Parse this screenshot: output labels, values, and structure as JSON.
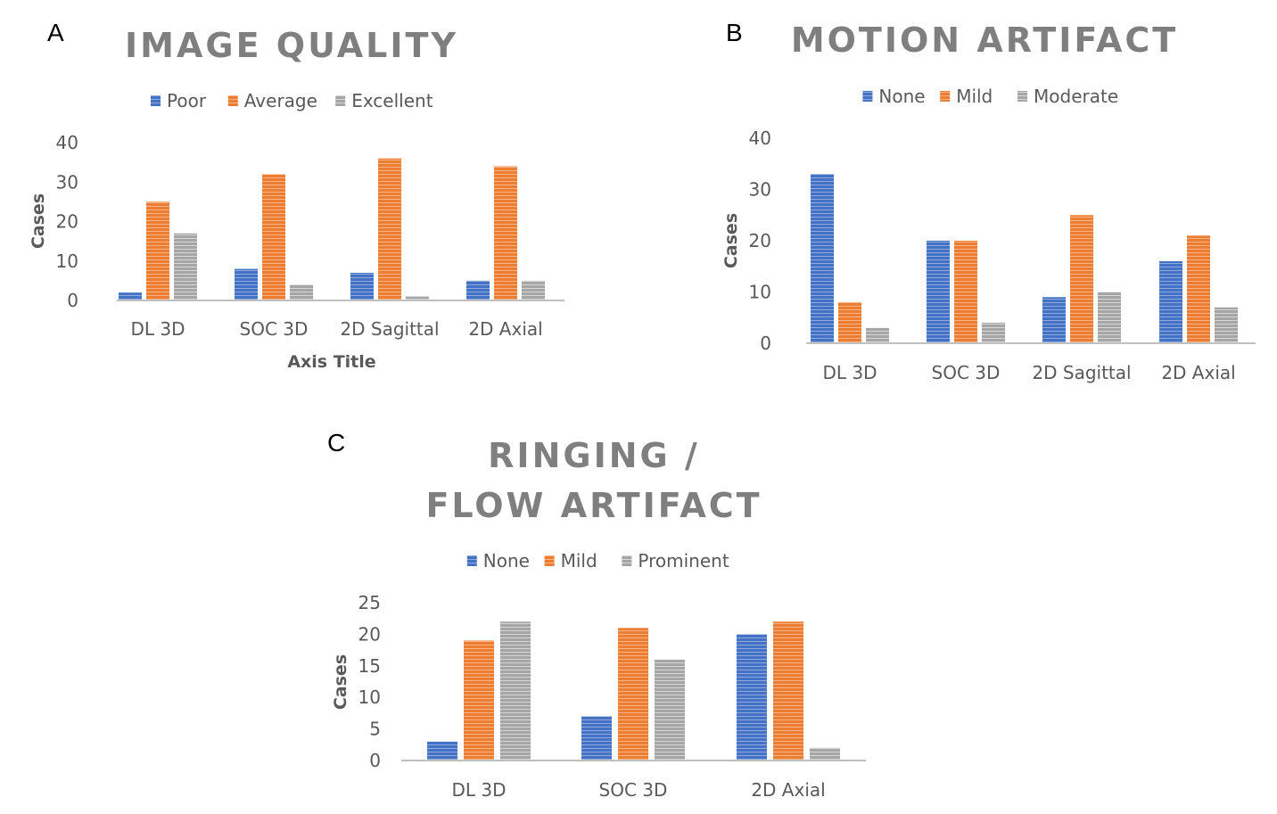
{
  "colors": {
    "blue": "#4472c4",
    "orange": "#ed7d31",
    "gray": "#a5a5a5"
  },
  "chart_data": [
    {
      "panel": "A",
      "type": "bar",
      "title": "IMAGE QUALITY",
      "categories": [
        "DL 3D",
        "SOC 3D",
        "2D Sagittal",
        "2D Axial"
      ],
      "series": [
        {
          "name": "Poor",
          "values": [
            2,
            8,
            7,
            5
          ]
        },
        {
          "name": "Average",
          "values": [
            25,
            32,
            36,
            34
          ]
        },
        {
          "name": "Excellent",
          "values": [
            17,
            4,
            1,
            5
          ]
        }
      ],
      "xlabel": "Axis Title",
      "ylabel": "Cases",
      "ylim": [
        0,
        40
      ],
      "yticks": [
        "0",
        "10",
        "20",
        "30",
        "40"
      ],
      "grid": false,
      "legend": "top"
    },
    {
      "panel": "B",
      "type": "bar",
      "title": "MOTION ARTIFACT",
      "categories": [
        "DL 3D",
        "SOC 3D",
        "2D Sagittal",
        "2D Axial"
      ],
      "series": [
        {
          "name": "None",
          "values": [
            33,
            20,
            9,
            16
          ]
        },
        {
          "name": "Mild",
          "values": [
            8,
            20,
            25,
            21
          ]
        },
        {
          "name": "Moderate",
          "values": [
            3,
            4,
            10,
            7
          ]
        }
      ],
      "xlabel": "",
      "ylabel": "Cases",
      "ylim": [
        0,
        40
      ],
      "yticks": [
        "0",
        "10",
        "20",
        "30",
        "40"
      ],
      "grid": false,
      "legend": "top"
    },
    {
      "panel": "C",
      "type": "bar",
      "title": "RINGING / FLOW ARTIFACT",
      "categories": [
        "DL 3D",
        "SOC 3D",
        "2D Axial"
      ],
      "series": [
        {
          "name": "None",
          "values": [
            3,
            7,
            20
          ]
        },
        {
          "name": "Mild",
          "values": [
            19,
            21,
            22
          ]
        },
        {
          "name": "Prominent",
          "values": [
            22,
            16,
            2
          ]
        }
      ],
      "xlabel": "",
      "ylabel": "Cases",
      "ylim": [
        0,
        25
      ],
      "yticks": [
        "0",
        "5",
        "10",
        "15",
        "20",
        "25"
      ],
      "grid": false,
      "legend": "top"
    }
  ]
}
